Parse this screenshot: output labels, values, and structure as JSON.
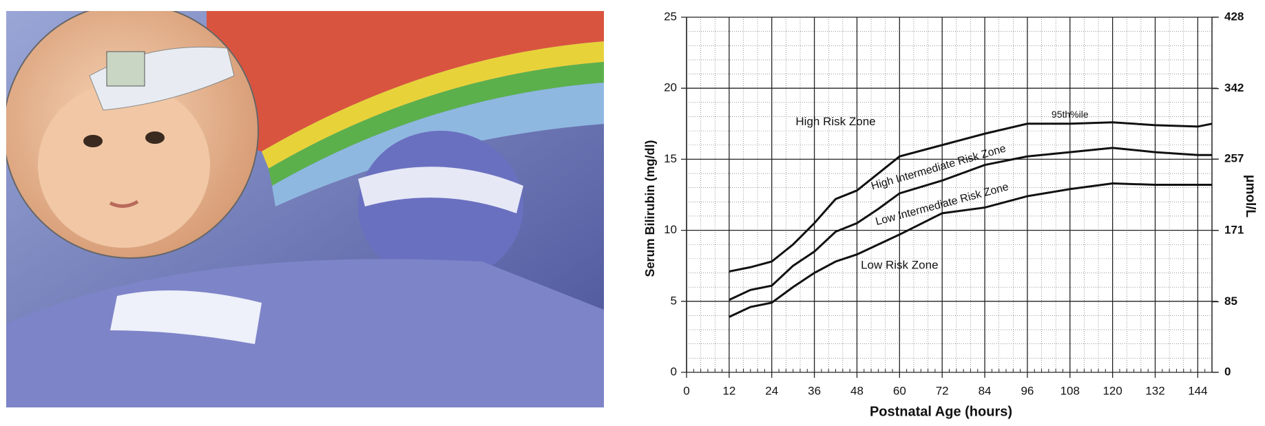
{
  "chart_data": {
    "type": "line",
    "x": [
      12,
      18,
      24,
      30,
      36,
      42,
      48,
      54,
      60,
      72,
      84,
      96,
      108,
      120,
      132,
      144,
      148
    ],
    "series": [
      {
        "color": "#111111",
        "values": [
          7.1,
          7.4,
          7.8,
          9.0,
          10.5,
          12.2,
          12.8,
          14.0,
          15.2,
          16.0,
          16.8,
          17.5,
          17.5,
          17.6,
          17.4,
          17.3,
          17.5
        ]
      },
      {
        "color": "#111111",
        "values": [
          5.1,
          5.8,
          6.1,
          7.5,
          8.5,
          9.9,
          10.5,
          11.5,
          12.6,
          13.5,
          14.6,
          15.2,
          15.5,
          15.8,
          15.5,
          15.3,
          15.3
        ]
      },
      {
        "color": "#111111",
        "values": [
          3.9,
          4.6,
          4.9,
          6.0,
          7.0,
          7.8,
          8.3,
          9.0,
          9.7,
          11.2,
          11.6,
          12.4,
          12.9,
          13.3,
          13.2,
          13.2,
          13.2
        ]
      }
    ],
    "xlabel": "Postnatal Age (hours)",
    "ylabel": "Serum Bilirubin (mg/dl)",
    "y2label": "μmol/L",
    "xlim": [
      0,
      148
    ],
    "xticks": [
      0,
      12,
      24,
      36,
      48,
      60,
      72,
      84,
      96,
      108,
      120,
      132,
      144
    ],
    "ylim": [
      0,
      25
    ],
    "yticks": [
      0,
      5,
      10,
      15,
      20,
      25
    ],
    "y2lim": [
      0,
      428
    ],
    "y2ticks": [
      0,
      85,
      171,
      257,
      342,
      428
    ],
    "annotations": [
      "High Risk Zone",
      "High Intermediate Risk Zone",
      "Low Intermediate Risk Zone",
      "Low Risk Zone",
      "95th%ile"
    ],
    "grid": true
  }
}
